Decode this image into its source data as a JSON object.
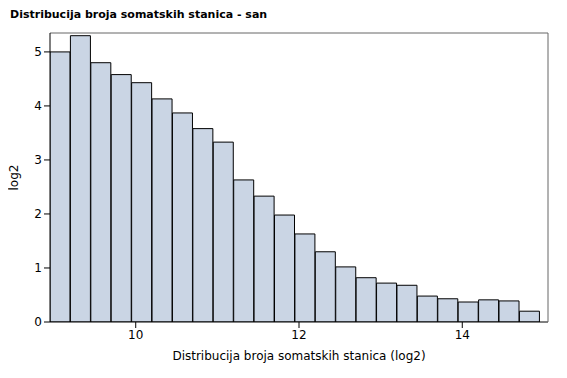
{
  "chart_data": {
    "type": "histogram",
    "title": "Distribucija broja somatskih stanica - san",
    "x_label": "Distribucija broja somatskih stanica (log2)",
    "y_label": "log2",
    "bins": [
      8.95,
      9.2,
      9.45,
      9.7,
      9.95,
      10.2,
      10.45,
      10.7,
      10.95,
      11.2,
      11.45,
      11.7,
      11.95,
      12.2,
      12.45,
      12.7,
      12.95,
      13.2,
      13.45,
      13.7,
      13.95,
      14.2,
      14.45,
      14.7,
      14.95
    ],
    "values": [
      5.0,
      5.3,
      4.8,
      4.58,
      4.43,
      4.13,
      3.87,
      3.58,
      3.33,
      2.63,
      2.33,
      1.98,
      1.63,
      1.3,
      1.02,
      0.82,
      0.72,
      0.68,
      0.48,
      0.43,
      0.37,
      0.41,
      0.39,
      0.2
    ],
    "color": "#cad5e4",
    "xlim": [
      8.95,
      15.05
    ],
    "xticks": [
      10,
      12,
      14
    ],
    "ylim": [
      0,
      5.35
    ],
    "yticks": [
      0,
      1,
      2,
      3,
      4,
      5
    ],
    "grid": false
  }
}
